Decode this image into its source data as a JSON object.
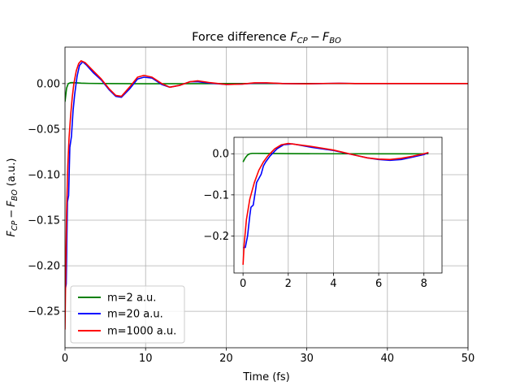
{
  "chart_data": [
    {
      "name": "main",
      "type": "line",
      "title_prefix": "Force difference",
      "title_math": {
        "f1": "F",
        "s1": "CP",
        "minus": "−",
        "f2": "F",
        "s2": "BO"
      },
      "xlabel": "Time (fs)",
      "ylabel_math": {
        "f1": "F",
        "s1": "CP",
        "minus": "−",
        "f2": "F",
        "s2": "BO",
        "unit": "(a.u.)"
      },
      "xlim": [
        0,
        50
      ],
      "ylim": [
        -0.29,
        0.04
      ],
      "xticks": [
        0,
        10,
        20,
        30,
        40,
        50
      ],
      "xtick_labels": [
        "0",
        "10",
        "20",
        "30",
        "40",
        "50"
      ],
      "yticks": [
        -0.25,
        -0.2,
        -0.15,
        -0.1,
        -0.05,
        0.0
      ],
      "ytick_labels": [
        "−0.25",
        "−0.20",
        "−0.15",
        "−0.10",
        "−0.05",
        "0.00"
      ],
      "grid": true,
      "legend_position": "lower-left",
      "series": [
        {
          "name": "m=2 a.u.",
          "color": "#008000",
          "x": [
            0,
            0.2,
            0.4,
            0.7,
            1.0,
            1.5,
            2,
            3,
            5,
            10,
            20,
            30,
            40,
            50
          ],
          "y": [
            -0.02,
            -0.005,
            0.0,
            0.001,
            0.001,
            0.0008,
            0.0005,
            0.0002,
            0.0,
            -0.0002,
            0.0,
            0.0,
            0.0,
            0.0
          ]
        },
        {
          "name": "m=20 a.u.",
          "color": "#0000ff",
          "x": [
            0,
            0.15,
            0.3,
            0.45,
            0.6,
            0.8,
            1.0,
            1.2,
            1.5,
            1.8,
            2.2,
            2.7,
            3.5,
            4.5,
            5.5,
            6.3,
            7.0,
            8.0,
            9.0,
            9.8,
            10.8,
            12.0,
            13.0,
            14.2,
            15.5,
            16.5,
            18.0,
            20.0,
            22.0,
            23.5,
            25.0,
            27.0,
            30.0,
            32.0,
            34.0,
            36.0,
            40.0,
            45.0,
            50.0
          ],
          "y": [
            -0.228,
            -0.22,
            -0.13,
            -0.123,
            -0.07,
            -0.058,
            -0.03,
            -0.012,
            0.008,
            0.02,
            0.024,
            0.02,
            0.012,
            0.004,
            -0.007,
            -0.014,
            -0.015,
            -0.006,
            0.005,
            0.007,
            0.006,
            -0.001,
            -0.004,
            -0.002,
            0.002,
            0.002,
            0.0005,
            -0.001,
            -0.0005,
            0.0005,
            0.0006,
            0.0,
            -0.0003,
            0.0,
            0.0003,
            0.0,
            0.0,
            0.0,
            0.0
          ]
        },
        {
          "name": "m=1000 a.u.",
          "color": "#ff0000",
          "x": [
            0,
            0.1,
            0.2,
            0.35,
            0.5,
            0.7,
            0.9,
            1.1,
            1.4,
            1.7,
            2.0,
            2.5,
            3.5,
            4.5,
            5.5,
            6.3,
            7.0,
            8.0,
            9.0,
            9.8,
            10.8,
            12.0,
            13.0,
            14.2,
            15.5,
            16.5,
            18.0,
            20.0,
            22.0,
            23.5,
            25.0,
            27.0,
            30.0,
            32.0,
            34.0,
            36.0,
            40.0,
            45.0,
            50.0
          ],
          "y": [
            -0.27,
            -0.2,
            -0.14,
            -0.09,
            -0.06,
            -0.035,
            -0.015,
            0.0,
            0.014,
            0.022,
            0.025,
            0.023,
            0.014,
            0.005,
            -0.006,
            -0.013,
            -0.014,
            -0.004,
            0.007,
            0.009,
            0.007,
            0.0,
            -0.004,
            -0.002,
            0.002,
            0.003,
            0.001,
            -0.001,
            -0.0005,
            0.0008,
            0.0008,
            0.0,
            -0.0003,
            0.0001,
            0.0003,
            0.0,
            0.0,
            0.0,
            0.0
          ]
        }
      ]
    },
    {
      "name": "inset",
      "type": "line",
      "xlim": [
        -0.4,
        8.8
      ],
      "ylim": [
        -0.29,
        0.04
      ],
      "xticks": [
        0,
        2,
        4,
        6,
        8
      ],
      "xtick_labels": [
        "0",
        "2",
        "4",
        "6",
        "8"
      ],
      "yticks": [
        -0.2,
        -0.1,
        0.0
      ],
      "ytick_labels": [
        "−0.2",
        "−0.1",
        "0.0"
      ],
      "grid": true,
      "series": [
        {
          "name": "m=2 a.u.",
          "color": "#008000",
          "x": [
            0,
            0.1,
            0.2,
            0.3,
            0.4,
            0.6,
            1.0,
            2,
            4,
            6,
            8,
            8.2
          ],
          "y": [
            -0.02,
            -0.01,
            -0.003,
            0.0,
            0.001,
            0.001,
            0.0008,
            0.0004,
            0.0,
            -0.0002,
            0.0,
            0.0
          ]
        },
        {
          "name": "m=20 a.u.",
          "color": "#0000ff",
          "x": [
            0,
            0.1,
            0.2,
            0.3,
            0.35,
            0.45,
            0.55,
            0.6,
            0.7,
            0.8,
            0.9,
            1.0,
            1.2,
            1.5,
            1.8,
            2.2,
            3.0,
            4.0,
            5.0,
            5.5,
            6.0,
            6.5,
            7.0,
            7.5,
            8.0,
            8.2
          ],
          "y": [
            -0.228,
            -0.228,
            -0.2,
            -0.15,
            -0.13,
            -0.125,
            -0.09,
            -0.07,
            -0.06,
            -0.05,
            -0.03,
            -0.02,
            -0.005,
            0.012,
            0.022,
            0.024,
            0.016,
            0.008,
            -0.004,
            -0.01,
            -0.014,
            -0.016,
            -0.014,
            -0.008,
            -0.002,
            0.003
          ]
        },
        {
          "name": "m=1000 a.u.",
          "color": "#ff0000",
          "x": [
            0,
            0.05,
            0.15,
            0.3,
            0.5,
            0.7,
            0.9,
            1.1,
            1.4,
            1.7,
            2.0,
            3.0,
            4.0,
            5.0,
            5.5,
            6.0,
            6.5,
            7.0,
            7.5,
            8.0,
            8.2
          ],
          "y": [
            -0.27,
            -0.22,
            -0.16,
            -0.11,
            -0.07,
            -0.04,
            -0.02,
            -0.005,
            0.012,
            0.022,
            0.025,
            0.018,
            0.009,
            -0.004,
            -0.01,
            -0.013,
            -0.014,
            -0.011,
            -0.006,
            0.0,
            0.003
          ]
        }
      ]
    }
  ]
}
